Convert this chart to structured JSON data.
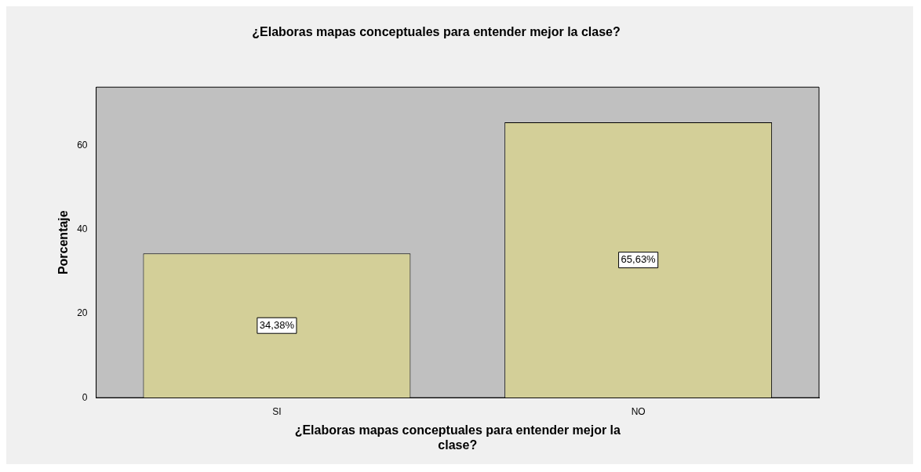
{
  "chart_data": {
    "type": "bar",
    "title": "¿Elaboras mapas conceptuales para entender mejor la clase?",
    "xlabel": "¿Elaboras mapas conceptuales para entender mejor la\nclase?",
    "ylabel": "Porcentaje",
    "categories": [
      "SI",
      "NO"
    ],
    "values": [
      34.38,
      65.63
    ],
    "value_labels": [
      "34,38%",
      "65,63%"
    ],
    "color": "#d3cf98",
    "ylim": [
      0,
      74
    ],
    "yticks": [
      0,
      20,
      40,
      60
    ],
    "grid": false,
    "legend": false
  }
}
